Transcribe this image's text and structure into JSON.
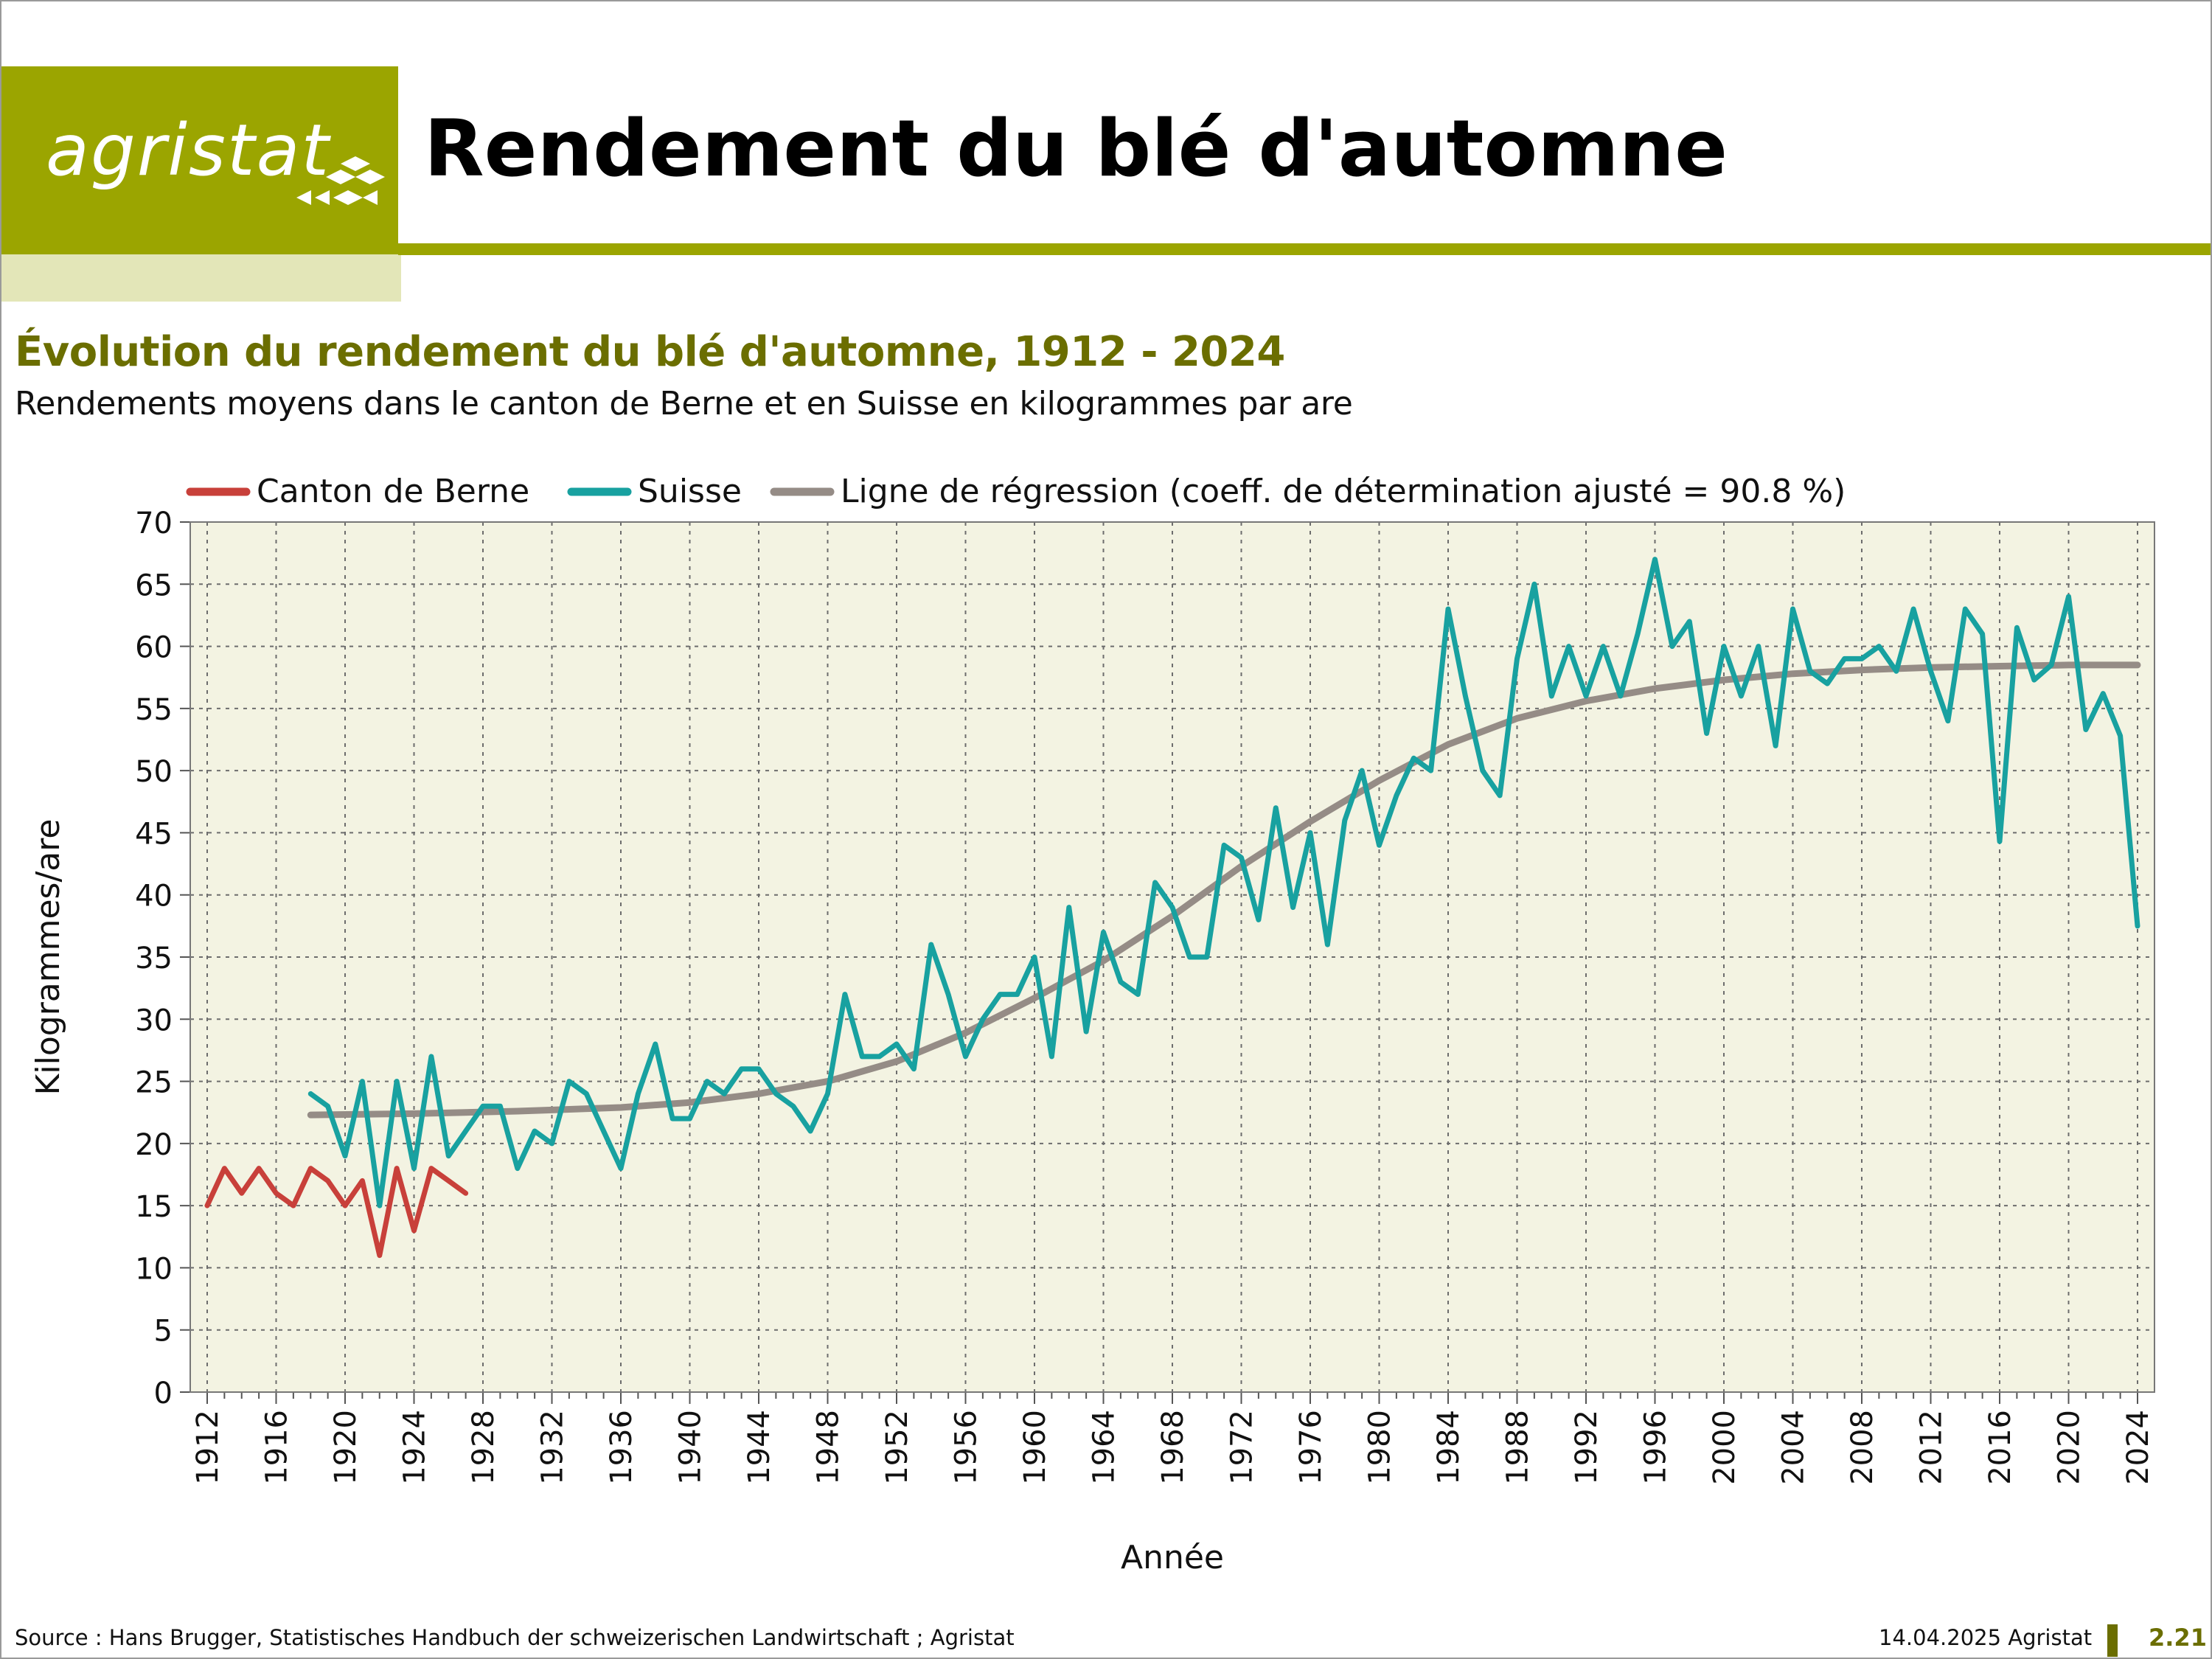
{
  "header": {
    "logo": "agristat",
    "title": "Rendement du blé d'automne"
  },
  "chart_heading": {
    "title": "Évolution du rendement du blé d'automne, 1912 - 2024",
    "subtitle": "Rendements moyens dans le canton de Berne et en Suisse en kilogrammes par are"
  },
  "footer": {
    "source": "Source : Hans Brugger, Statistisches Handbuch der schweizerischen Landwirtschaft ; Agristat",
    "date": "14.04.2025 Agristat",
    "page": "2.21"
  },
  "colors": {
    "accent": "#9ba500",
    "accent_dark": "#6b6e00",
    "plot_bg": "#f3f3e2",
    "berne": "#c8403a",
    "suisse": "#18a1a0",
    "regression": "#958c86"
  },
  "chart_data": {
    "type": "line",
    "xlabel": "Année",
    "ylabel": "Kilogrammes/are",
    "xlim": [
      1912,
      2024
    ],
    "ylim": [
      0,
      70
    ],
    "y_ticks": [
      0,
      5,
      10,
      15,
      20,
      25,
      30,
      35,
      40,
      45,
      50,
      55,
      60,
      65,
      70
    ],
    "x_ticks": [
      1912,
      1916,
      1920,
      1924,
      1928,
      1932,
      1936,
      1940,
      1944,
      1948,
      1952,
      1956,
      1960,
      1964,
      1968,
      1972,
      1976,
      1980,
      1984,
      1988,
      1992,
      1996,
      2000,
      2004,
      2008,
      2012,
      2016,
      2020,
      2024
    ],
    "grid": true,
    "legend_position": "top",
    "series": [
      {
        "name": "Canton de Berne",
        "x": [
          1912,
          1913,
          1914,
          1915,
          1916,
          1917,
          1918,
          1919,
          1920,
          1921,
          1922,
          1923,
          1924,
          1925,
          1926,
          1927
        ],
        "values": [
          15,
          18,
          16,
          18,
          16,
          15,
          18,
          17,
          15,
          17,
          11,
          18,
          13,
          18,
          17,
          16
        ]
      },
      {
        "name": "Suisse",
        "x": [
          1918,
          1919,
          1920,
          1921,
          1922,
          1923,
          1924,
          1925,
          1926,
          1927,
          1928,
          1929,
          1930,
          1931,
          1932,
          1933,
          1934,
          1935,
          1936,
          1937,
          1938,
          1939,
          1940,
          1941,
          1942,
          1943,
          1944,
          1945,
          1946,
          1947,
          1948,
          1949,
          1950,
          1951,
          1952,
          1953,
          1954,
          1955,
          1956,
          1957,
          1958,
          1959,
          1960,
          1961,
          1962,
          1963,
          1964,
          1965,
          1966,
          1967,
          1968,
          1969,
          1970,
          1971,
          1972,
          1973,
          1974,
          1975,
          1976,
          1977,
          1978,
          1979,
          1980,
          1981,
          1982,
          1983,
          1984,
          1985,
          1986,
          1987,
          1988,
          1989,
          1990,
          1991,
          1992,
          1993,
          1994,
          1995,
          1996,
          1997,
          1998,
          1999,
          2000,
          2001,
          2002,
          2003,
          2004,
          2005,
          2006,
          2007,
          2008,
          2009,
          2010,
          2011,
          2012,
          2013,
          2014,
          2015,
          2016,
          2017,
          2018,
          2019,
          2020,
          2021,
          2022,
          2023,
          2024
        ],
        "values": [
          24,
          23,
          19,
          25,
          15,
          25,
          18,
          27,
          19,
          21,
          23,
          23,
          18,
          21,
          20,
          25,
          24,
          21,
          18,
          24,
          28,
          22,
          22,
          25,
          24,
          26,
          26,
          24,
          23,
          21,
          24,
          32,
          27,
          27,
          28,
          26,
          36,
          32,
          27,
          30,
          32,
          32,
          35,
          27,
          39,
          29,
          37,
          33,
          32,
          41,
          39,
          35,
          35,
          44,
          43,
          38,
          47,
          39,
          45,
          36,
          46,
          50,
          44,
          48,
          51,
          50,
          63,
          56,
          50,
          48,
          59,
          65,
          56,
          60,
          56,
          60,
          56,
          61,
          67,
          60,
          62,
          53,
          60,
          56,
          60,
          52,
          63,
          58,
          57,
          59,
          59,
          60,
          58,
          63,
          58,
          54,
          63,
          61,
          44.3,
          61.5,
          57.3,
          58.5,
          64,
          53.3,
          56.2,
          52.8,
          37.5
        ]
      },
      {
        "name": "Ligne de régression (coeff. de détermination ajusté = 90.8 %)",
        "x": [
          1918,
          1924,
          1930,
          1936,
          1940,
          1944,
          1948,
          1952,
          1956,
          1960,
          1964,
          1968,
          1972,
          1976,
          1980,
          1984,
          1988,
          1992,
          1996,
          2000,
          2004,
          2008,
          2012,
          2016,
          2020,
          2024
        ],
        "values": [
          22.3,
          22.4,
          22.6,
          22.9,
          23.3,
          24.0,
          25.0,
          26.6,
          28.9,
          31.7,
          34.7,
          38.3,
          42.3,
          45.9,
          49.2,
          52.1,
          54.2,
          55.6,
          56.6,
          57.3,
          57.8,
          58.1,
          58.3,
          58.4,
          58.5,
          58.5
        ]
      }
    ]
  }
}
